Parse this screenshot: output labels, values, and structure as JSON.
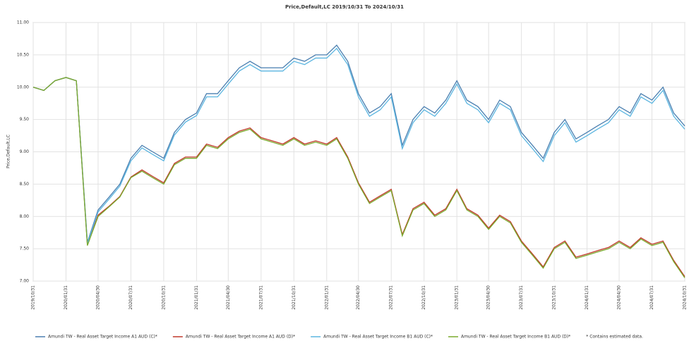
{
  "chart_data": {
    "type": "line",
    "title": "Price,Default,LC 2019/10/31 To 2024/10/31",
    "y_label": "Price,Default,LC",
    "note": "* Contains estimated data.",
    "grid": true,
    "legend": "bottom",
    "x": [
      "2019/10/31",
      "2019/11/30",
      "2019/12/31",
      "2020/01/31",
      "2020/02/29",
      "2020/03/31",
      "2020/04/30",
      "2020/05/31",
      "2020/06/30",
      "2020/07/31",
      "2020/08/31",
      "2020/09/30",
      "2020/10/31",
      "2020/11/30",
      "2020/12/31",
      "2021/01/31",
      "2021/02/28",
      "2021/03/31",
      "2021/04/30",
      "2021/05/31",
      "2021/06/30",
      "2021/07/31",
      "2021/08/31",
      "2021/09/30",
      "2021/10/31",
      "2021/11/30",
      "2021/12/31",
      "2022/01/31",
      "2022/02/28",
      "2022/03/31",
      "2022/04/30",
      "2022/05/31",
      "2022/06/30",
      "2022/07/31",
      "2022/08/31",
      "2022/09/30",
      "2022/10/31",
      "2022/11/30",
      "2022/12/31",
      "2023/01/31",
      "2023/02/28",
      "2023/03/31",
      "2023/04/30",
      "2023/05/31",
      "2023/06/30",
      "2023/07/31",
      "2023/08/31",
      "2023/09/30",
      "2023/10/31",
      "2023/11/30",
      "2023/12/31",
      "2024/01/31",
      "2024/02/29",
      "2024/03/31",
      "2024/04/30",
      "2024/05/31",
      "2024/06/30",
      "2024/07/31",
      "2024/08/31",
      "2024/09/30",
      "2024/10/31"
    ],
    "xlim": [
      "2019/10/31",
      "2024/10/31"
    ],
    "xticks": [
      "2019/10/31",
      "2020/01/31",
      "2020/04/30",
      "2020/07/31",
      "2020/10/31",
      "2021/01/31",
      "2021/04/30",
      "2021/07/31",
      "2021/10/31",
      "2022/01/31",
      "2022/04/30",
      "2022/07/31",
      "2022/10/31",
      "2023/01/31",
      "2023/04/30",
      "2023/07/31",
      "2023/10/31",
      "2024/01/31",
      "2024/04/30",
      "2024/07/31",
      "2024/10/31"
    ],
    "ylim": [
      7,
      11
    ],
    "yticks": [
      {
        "value": 7,
        "label": "7.00"
      },
      {
        "value": 7.5,
        "label": "7.50"
      },
      {
        "value": 8,
        "label": "8.00"
      },
      {
        "value": 8.5,
        "label": "8.50"
      },
      {
        "value": 9,
        "label": "9.00"
      },
      {
        "value": 9.5,
        "label": "9.50"
      },
      {
        "value": 10,
        "label": "10.00"
      },
      {
        "value": 10.5,
        "label": "10.50"
      },
      {
        "value": 11,
        "label": "11.00"
      }
    ],
    "series": [
      {
        "name": "Amundi TW - Real Asset Target Income A1 AUD (C)*",
        "color": "#4a7fb0",
        "values": [
          10.0,
          9.95,
          10.1,
          10.15,
          10.1,
          7.6,
          8.1,
          8.3,
          8.5,
          8.9,
          9.1,
          9.0,
          8.9,
          9.3,
          9.5,
          9.6,
          9.9,
          9.9,
          10.1,
          10.3,
          10.4,
          10.3,
          10.3,
          10.3,
          10.45,
          10.4,
          10.5,
          10.5,
          10.65,
          10.4,
          9.9,
          9.6,
          9.7,
          9.9,
          9.1,
          9.5,
          9.7,
          9.6,
          9.8,
          10.1,
          9.8,
          9.7,
          9.5,
          9.8,
          9.7,
          9.3,
          9.1,
          8.9,
          9.3,
          9.5,
          9.2,
          9.3,
          9.4,
          9.5,
          9.7,
          9.6,
          9.9,
          9.8,
          10.0,
          9.6,
          9.4
        ]
      },
      {
        "name": "Amundi TW - Real Asset Target Income A1 AUD (D)*",
        "color": "#c0392b",
        "values": [
          10.0,
          9.95,
          10.1,
          10.15,
          10.1,
          7.56,
          8.02,
          8.16,
          8.31,
          8.61,
          8.72,
          8.62,
          8.52,
          8.82,
          8.92,
          8.92,
          9.12,
          9.07,
          9.22,
          9.32,
          9.37,
          9.22,
          9.17,
          9.12,
          9.22,
          9.12,
          9.17,
          9.12,
          9.22,
          8.92,
          8.52,
          8.22,
          8.32,
          8.42,
          7.72,
          8.12,
          8.22,
          8.02,
          8.12,
          8.42,
          8.12,
          8.02,
          7.82,
          8.02,
          7.92,
          7.62,
          7.42,
          7.22,
          7.52,
          7.62,
          7.37,
          7.42,
          7.47,
          7.52,
          7.62,
          7.52,
          7.67,
          7.57,
          7.62,
          7.32,
          7.07
        ]
      },
      {
        "name": "Amundi TW - Real Asset Target Income B1 AUD (C)*",
        "color": "#5bb5e0",
        "values": [
          10.0,
          9.95,
          10.1,
          10.15,
          10.1,
          7.58,
          8.07,
          8.27,
          8.47,
          8.86,
          9.06,
          8.96,
          8.86,
          9.26,
          9.46,
          9.56,
          9.85,
          9.85,
          10.05,
          10.25,
          10.35,
          10.25,
          10.25,
          10.25,
          10.4,
          10.35,
          10.45,
          10.45,
          10.6,
          10.35,
          9.85,
          9.55,
          9.65,
          9.85,
          9.05,
          9.45,
          9.65,
          9.55,
          9.75,
          10.05,
          9.75,
          9.65,
          9.45,
          9.75,
          9.65,
          9.25,
          9.05,
          8.85,
          9.25,
          9.45,
          9.15,
          9.25,
          9.35,
          9.45,
          9.65,
          9.55,
          9.85,
          9.75,
          9.95,
          9.55,
          9.35
        ]
      },
      {
        "name": "Amundi TW - Real Asset Target Income B1 AUD (D)*",
        "color": "#7aab2e",
        "values": [
          10.0,
          9.95,
          10.1,
          10.15,
          10.1,
          7.55,
          8.0,
          8.15,
          8.3,
          8.6,
          8.7,
          8.6,
          8.5,
          8.8,
          8.9,
          8.9,
          9.1,
          9.05,
          9.2,
          9.3,
          9.35,
          9.2,
          9.15,
          9.1,
          9.2,
          9.1,
          9.15,
          9.1,
          9.2,
          8.9,
          8.5,
          8.2,
          8.3,
          8.4,
          7.7,
          8.1,
          8.2,
          8.0,
          8.1,
          8.4,
          8.1,
          8.0,
          7.8,
          8.0,
          7.9,
          7.6,
          7.4,
          7.2,
          7.5,
          7.6,
          7.35,
          7.4,
          7.45,
          7.5,
          7.6,
          7.5,
          7.65,
          7.55,
          7.6,
          7.3,
          7.05
        ]
      }
    ]
  }
}
